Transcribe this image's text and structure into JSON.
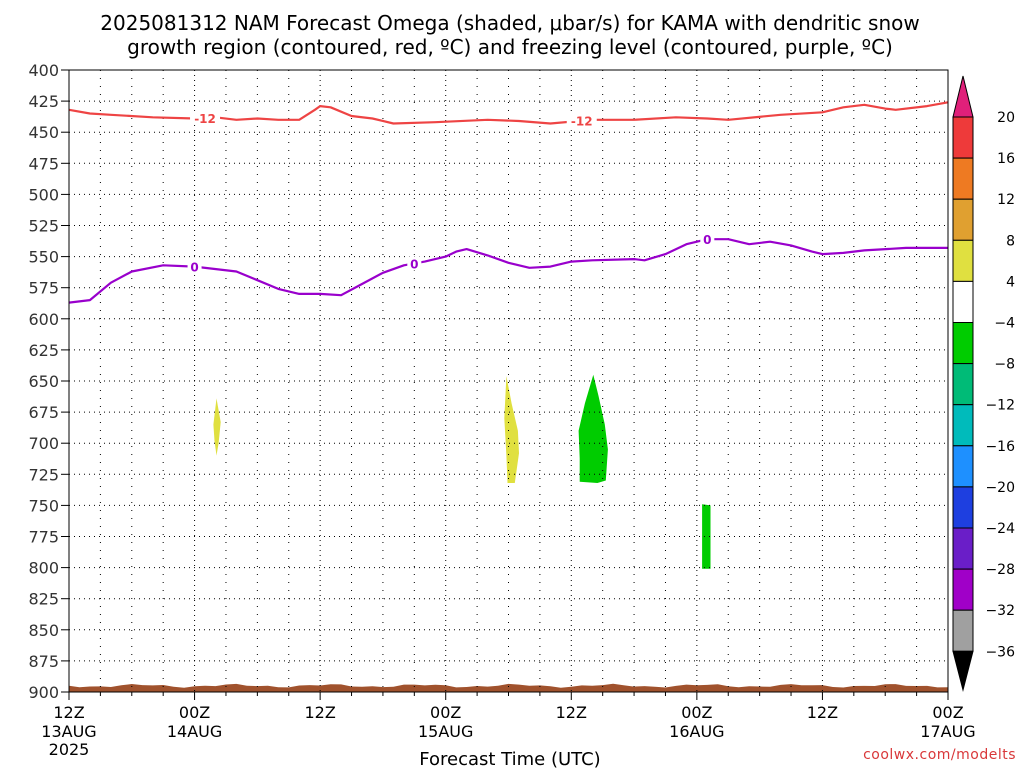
{
  "chart_data": {
    "type": "heatmap",
    "title_lines": [
      "2025081312 NAM Forecast Omega (shaded, μbar/s) for KAMA with dendritic snow",
      "growth region (contoured, red, ºC) and freezing level (contoured, purple, ºC)"
    ],
    "xlabel": "Forecast Time (UTC)",
    "credit": "coolwx.com/modelts",
    "x_range_hours": [
      0,
      84
    ],
    "x_ticks": [
      {
        "h": 0,
        "label": "12Z",
        "date": "13AUG",
        "year": "2025"
      },
      {
        "h": 12,
        "label": "00Z",
        "date": "14AUG",
        "year": ""
      },
      {
        "h": 24,
        "label": "12Z",
        "date": "",
        "year": ""
      },
      {
        "h": 36,
        "label": "00Z",
        "date": "15AUG",
        "year": ""
      },
      {
        "h": 48,
        "label": "12Z",
        "date": "",
        "year": ""
      },
      {
        "h": 60,
        "label": "00Z",
        "date": "16AUG",
        "year": ""
      },
      {
        "h": 72,
        "label": "12Z",
        "date": "",
        "year": ""
      },
      {
        "h": 84,
        "label": "00Z",
        "date": "17AUG",
        "year": ""
      }
    ],
    "y_range_mb": [
      400,
      900
    ],
    "y_ticks": [
      "400",
      "425",
      "450",
      "475",
      "500",
      "525",
      "550",
      "575",
      "600",
      "625",
      "650",
      "675",
      "700",
      "725",
      "750",
      "775",
      "800",
      "825",
      "850",
      "875",
      "900"
    ],
    "colorbar": {
      "labels": [
        "20",
        "16",
        "12",
        "8",
        "4",
        "−4",
        "−8",
        "−12",
        "−16",
        "−20",
        "−24",
        "−28",
        "−32",
        "−36"
      ],
      "colors": [
        "#ee3a3a",
        "#ee7a22",
        "#e0a030",
        "#e0e040",
        "#ffffff",
        "#00cc00",
        "#00bb77",
        "#00bbbb",
        "#1e90ff",
        "#1e3fe0",
        "#6a1ec8",
        "#a000c8",
        "#a0a0a0"
      ],
      "top_arrow_color": "#e0207a",
      "bottom_arrow_color": "#000000"
    },
    "series": [
      {
        "name": "-12",
        "color": "#ee4444",
        "label_hours": [
          13,
          49
        ],
        "points": [
          [
            0,
            432
          ],
          [
            2,
            435
          ],
          [
            4,
            436
          ],
          [
            8,
            438
          ],
          [
            12,
            439
          ],
          [
            14,
            438
          ],
          [
            16,
            440
          ],
          [
            18,
            439
          ],
          [
            20,
            440
          ],
          [
            22,
            440
          ],
          [
            23.5,
            432
          ],
          [
            24,
            429
          ],
          [
            25,
            430
          ],
          [
            27,
            437
          ],
          [
            29,
            439
          ],
          [
            31,
            443
          ],
          [
            35,
            442
          ],
          [
            40,
            440
          ],
          [
            43,
            441
          ],
          [
            46,
            443
          ],
          [
            50,
            440
          ],
          [
            54,
            440
          ],
          [
            58,
            438
          ],
          [
            61,
            439
          ],
          [
            63,
            440
          ],
          [
            68,
            436
          ],
          [
            72,
            434
          ],
          [
            74,
            430
          ],
          [
            76,
            428
          ],
          [
            78,
            431
          ],
          [
            79,
            432
          ],
          [
            82,
            429
          ],
          [
            84,
            426
          ]
        ]
      },
      {
        "name": "0",
        "color": "#9900cc",
        "label_hours": [
          12,
          33,
          61
        ],
        "points": [
          [
            0,
            587
          ],
          [
            2,
            585
          ],
          [
            4,
            571
          ],
          [
            6,
            562
          ],
          [
            9,
            557
          ],
          [
            12,
            558
          ],
          [
            16,
            562
          ],
          [
            18,
            569
          ],
          [
            20,
            576
          ],
          [
            22,
            580
          ],
          [
            24,
            580
          ],
          [
            26,
            581
          ],
          [
            28,
            572
          ],
          [
            30,
            563
          ],
          [
            32,
            557
          ],
          [
            34,
            554
          ],
          [
            36,
            550
          ],
          [
            37,
            546
          ],
          [
            38,
            544
          ],
          [
            40,
            549
          ],
          [
            42,
            555
          ],
          [
            44,
            559
          ],
          [
            46,
            558
          ],
          [
            48,
            554
          ],
          [
            50,
            553
          ],
          [
            54,
            552
          ],
          [
            55,
            553
          ],
          [
            57,
            548
          ],
          [
            59,
            540
          ],
          [
            61,
            536
          ],
          [
            63,
            536
          ],
          [
            65,
            540
          ],
          [
            67,
            538
          ],
          [
            69,
            541
          ],
          [
            71,
            546
          ],
          [
            72,
            548
          ],
          [
            74,
            547
          ],
          [
            76,
            545
          ],
          [
            80,
            543
          ],
          [
            84,
            543
          ]
        ]
      }
    ],
    "shaded_regions": [
      {
        "value_class": "4 to 8",
        "color": "#e0e040",
        "points": [
          [
            14.1,
            664
          ],
          [
            14.5,
            683
          ],
          [
            14.3,
            700
          ],
          [
            14.1,
            710
          ],
          [
            13.9,
            698
          ],
          [
            13.8,
            685
          ]
        ]
      },
      {
        "value_class": "4 to 8",
        "color": "#e0e040",
        "points": [
          [
            41.8,
            646
          ],
          [
            42.3,
            668
          ],
          [
            42.9,
            690
          ],
          [
            43.0,
            708
          ],
          [
            42.6,
            732
          ],
          [
            41.9,
            732
          ],
          [
            41.8,
            710
          ],
          [
            41.6,
            680
          ]
        ]
      },
      {
        "value_class": "-4 to -8",
        "color": "#00cc00",
        "points": [
          [
            50.1,
            645
          ],
          [
            50.6,
            662
          ],
          [
            51.2,
            685
          ],
          [
            51.5,
            705
          ],
          [
            51.3,
            730
          ],
          [
            50.5,
            732
          ],
          [
            48.8,
            731
          ],
          [
            48.8,
            712
          ],
          [
            48.7,
            690
          ],
          [
            49.3,
            668
          ]
        ]
      },
      {
        "value_class": "-4 to -8",
        "color": "#00cc00",
        "points": [
          [
            60.5,
            749
          ],
          [
            61.3,
            750
          ],
          [
            61.3,
            801
          ],
          [
            60.5,
            801
          ]
        ]
      }
    ],
    "terrain": {
      "color": "#a0522d",
      "top_mb": 895
    }
  }
}
